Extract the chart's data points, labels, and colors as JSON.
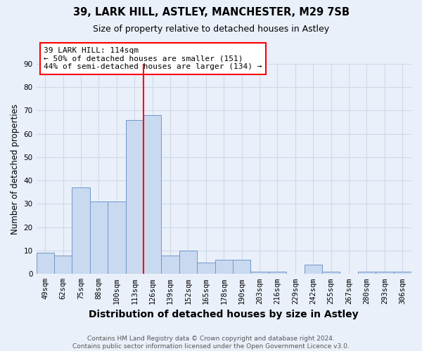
{
  "title1": "39, LARK HILL, ASTLEY, MANCHESTER, M29 7SB",
  "title2": "Size of property relative to detached houses in Astley",
  "xlabel": "Distribution of detached houses by size in Astley",
  "ylabel": "Number of detached properties",
  "footer": "Contains HM Land Registry data © Crown copyright and database right 2024.\nContains public sector information licensed under the Open Government Licence v3.0.",
  "categories": [
    "49sqm",
    "62sqm",
    "75sqm",
    "88sqm",
    "100sqm",
    "113sqm",
    "126sqm",
    "139sqm",
    "152sqm",
    "165sqm",
    "178sqm",
    "190sqm",
    "203sqm",
    "216sqm",
    "229sqm",
    "242sqm",
    "255sqm",
    "267sqm",
    "280sqm",
    "293sqm",
    "306sqm"
  ],
  "values": [
    9,
    8,
    37,
    31,
    31,
    66,
    68,
    8,
    10,
    5,
    6,
    6,
    1,
    1,
    0,
    4,
    1,
    0,
    1,
    1,
    1
  ],
  "bar_color": "#c9d9f0",
  "bar_edge_color": "#7097c8",
  "vline_x": 5.5,
  "annotation_text": "39 LARK HILL: 114sqm\n← 50% of detached houses are smaller (151)\n44% of semi-detached houses are larger (134) →",
  "annotation_box_color": "white",
  "annotation_box_edge": "red",
  "ylim": [
    0,
    90
  ],
  "yticks": [
    0,
    10,
    20,
    30,
    40,
    50,
    60,
    70,
    80,
    90
  ],
  "grid_color": "#d0d8e8",
  "bg_color": "#eaf0fa",
  "vline_color": "red",
  "title1_fontsize": 10.5,
  "title2_fontsize": 9,
  "xlabel_fontsize": 10,
  "ylabel_fontsize": 8.5,
  "tick_fontsize": 7.5,
  "footer_fontsize": 6.5,
  "ann_fontsize": 8
}
